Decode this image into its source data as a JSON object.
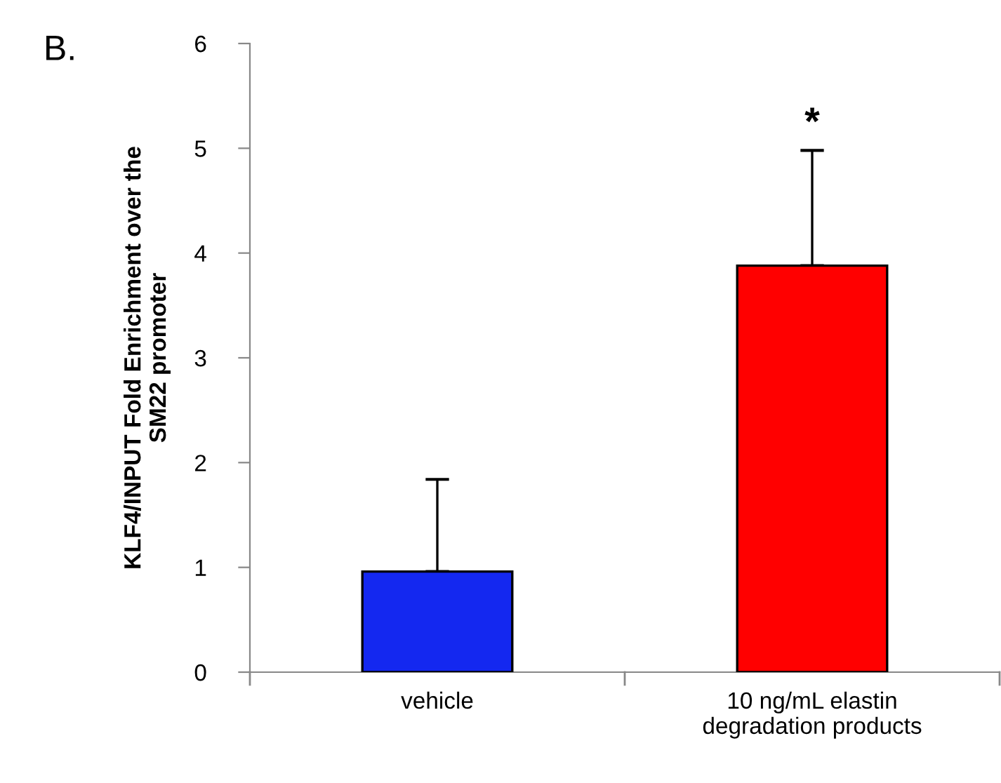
{
  "chart_data": {
    "type": "bar",
    "categories": [
      "vehicle",
      "10 ng/mL elastin\ndegradation products"
    ],
    "values": [
      0.96,
      3.88
    ],
    "colors": [
      "#1428f0",
      "#ff0000"
    ],
    "errors": [
      [
        0.96,
        1.84
      ],
      [
        3.88,
        4.98
      ]
    ],
    "ylabel": "KLF4/INPUT Fold Enrichment over the\nSM22 promoter",
    "ylim": [
      0,
      6
    ],
    "yticks": [
      0,
      1,
      2,
      3,
      4,
      5,
      6
    ],
    "grid": false,
    "annotations": [
      "B.",
      "*"
    ]
  }
}
